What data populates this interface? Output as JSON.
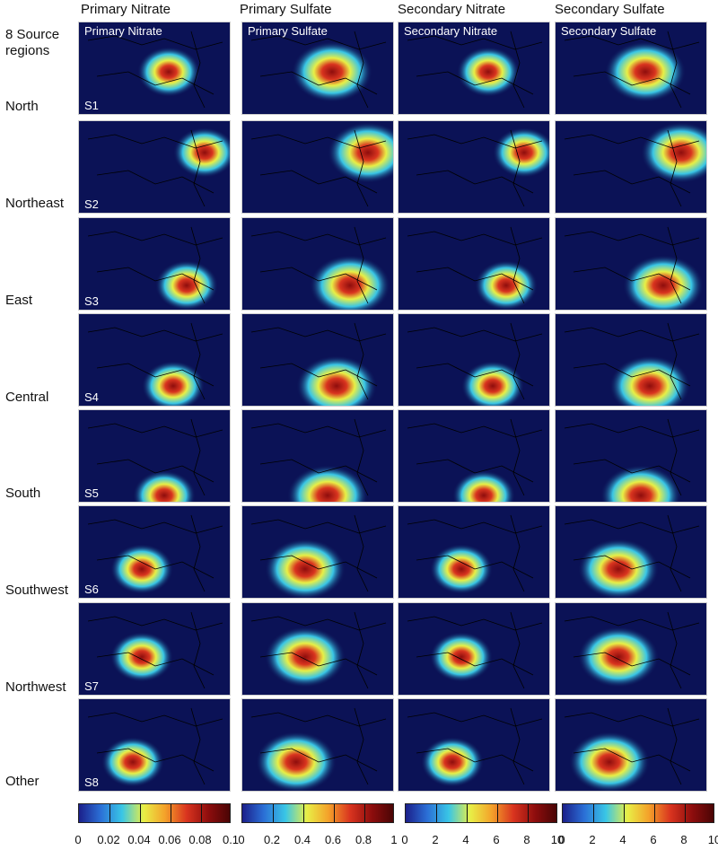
{
  "columns": [
    "Primary Nitrate",
    "Primary Sulfate",
    "Secondary Nitrate",
    "Secondary Sulfate"
  ],
  "panel_titles": [
    "Primary Nitrate",
    "Primary Sulfate",
    "Secondary Nitrate",
    "Secondary Sulfate"
  ],
  "source_header": "8 Source regions",
  "rows": [
    {
      "label": "North",
      "tag": "S1"
    },
    {
      "label": "Northeast",
      "tag": "S2"
    },
    {
      "label": "East",
      "tag": "S3"
    },
    {
      "label": "Central",
      "tag": "S4"
    },
    {
      "label": "South",
      "tag": "S5"
    },
    {
      "label": "Southwest",
      "tag": "S6"
    },
    {
      "label": "Northwest",
      "tag": "S7"
    },
    {
      "label": "Other",
      "tag": "S8"
    }
  ],
  "colorbars": [
    {
      "ticks": [
        "0",
        "0.02",
        "0.04",
        "0.06",
        "0.08",
        "0.1"
      ]
    },
    {
      "ticks": [
        "0",
        "0.2",
        "0.4",
        "0.6",
        "0.8",
        "1"
      ]
    },
    {
      "ticks": [
        "0",
        "2",
        "4",
        "6",
        "8",
        "10"
      ]
    },
    {
      "ticks": [
        "0",
        "2",
        "4",
        "6",
        "8",
        "10"
      ]
    }
  ],
  "colors": {
    "background": "#0b1256",
    "colormap": [
      "#1b1f8a",
      "#2b6fd6",
      "#39c6e6",
      "#e8ef46",
      "#f4a12a",
      "#d9341f",
      "#8e0d0d",
      "#4a0505"
    ]
  }
}
